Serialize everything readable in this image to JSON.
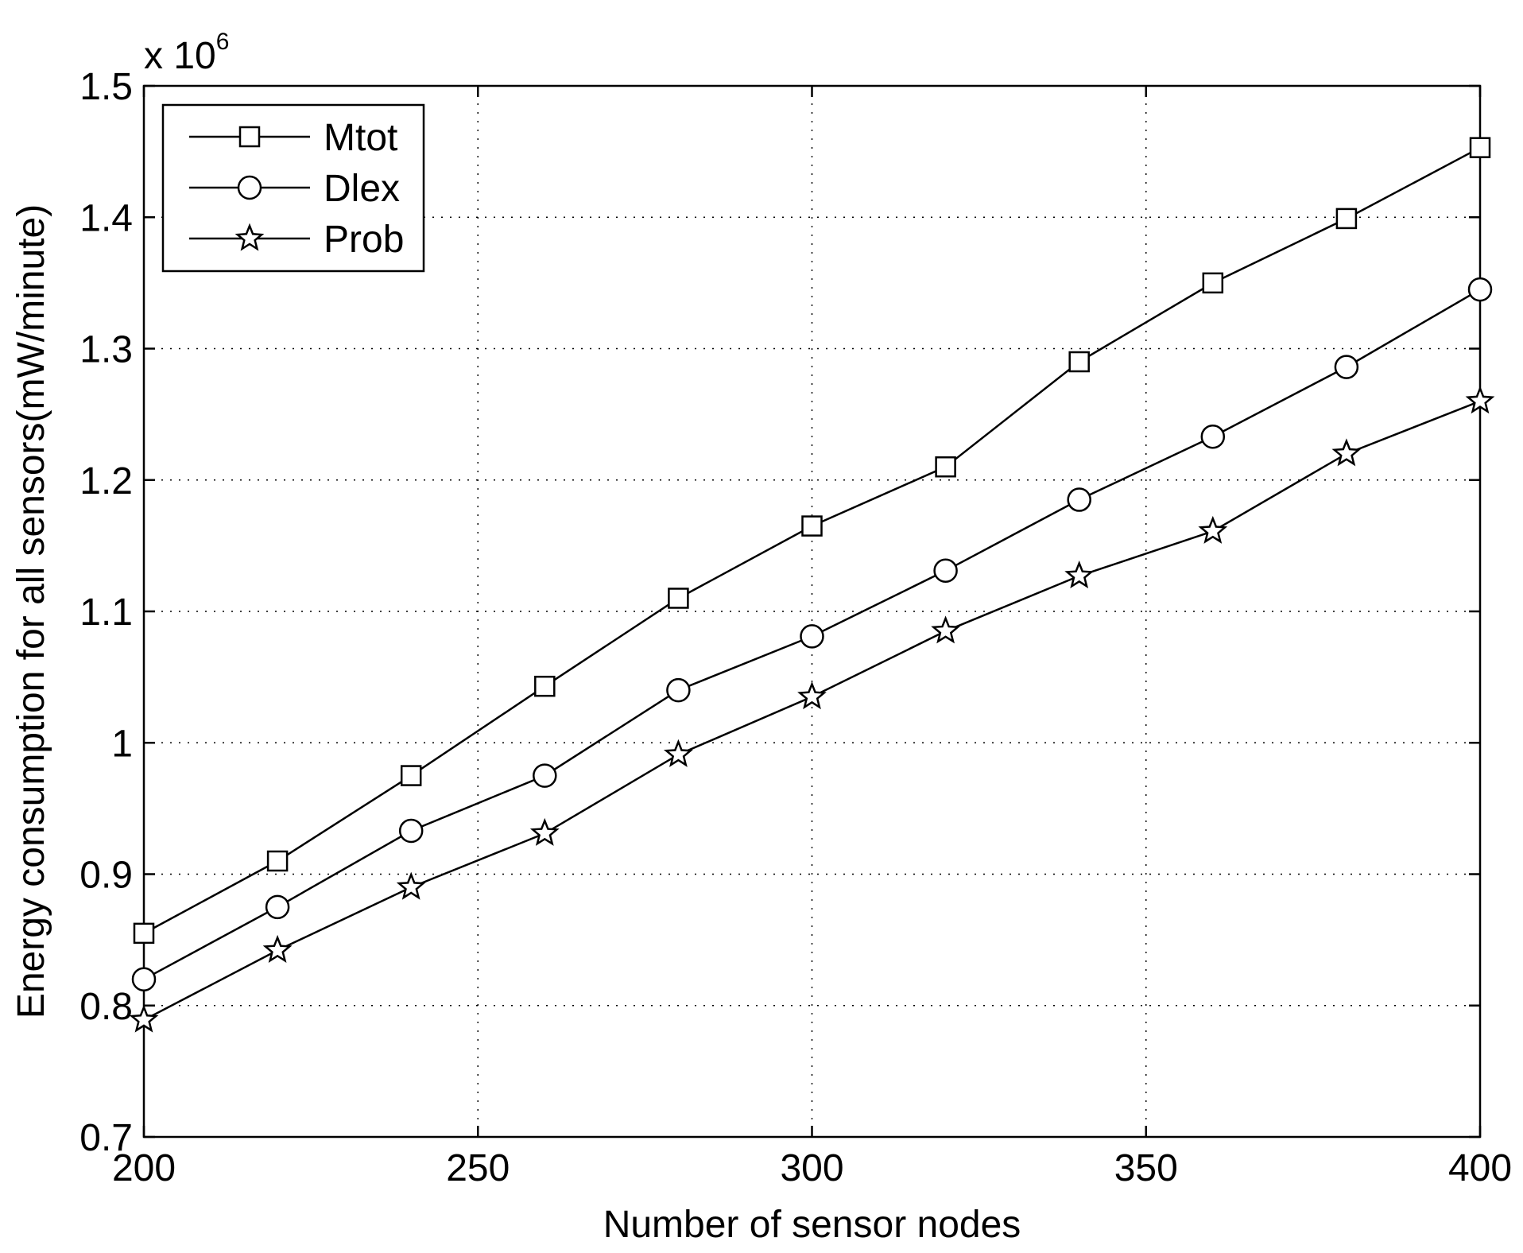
{
  "chart_data": {
    "type": "line",
    "title": "",
    "xlabel": "Number of sensor nodes",
    "ylabel": "Energy consumption for all sensors(mW/minute)",
    "y_multiplier_label": {
      "base": "x 10",
      "exponent": "6"
    },
    "xlim": [
      200,
      400
    ],
    "ylim": [
      0.7,
      1.5
    ],
    "x_ticks": [
      200,
      250,
      300,
      350,
      400
    ],
    "x_tick_labels": [
      "200",
      "250",
      "300",
      "350",
      "400"
    ],
    "y_ticks": [
      0.7,
      0.8,
      0.9,
      1.0,
      1.1,
      1.2,
      1.3,
      1.4,
      1.5
    ],
    "y_tick_labels": [
      "0.7",
      "0.8",
      "0.9",
      "1",
      "1.1",
      "1.2",
      "1.3",
      "1.4",
      "1.5"
    ],
    "grid": true,
    "legend_position": "top-left",
    "line_color": "#000000",
    "x": [
      200,
      220,
      240,
      260,
      280,
      300,
      320,
      340,
      360,
      380,
      400
    ],
    "series": [
      {
        "name": "Mtot",
        "marker": "square",
        "values": [
          0.855,
          0.91,
          0.975,
          1.043,
          1.11,
          1.165,
          1.21,
          1.29,
          1.35,
          1.399,
          1.453
        ]
      },
      {
        "name": "Dlex",
        "marker": "circle",
        "values": [
          0.82,
          0.875,
          0.933,
          0.975,
          1.04,
          1.081,
          1.131,
          1.185,
          1.233,
          1.286,
          1.345
        ]
      },
      {
        "name": "Prob",
        "marker": "star",
        "values": [
          0.789,
          0.842,
          0.89,
          0.931,
          0.991,
          1.035,
          1.085,
          1.127,
          1.161,
          1.22,
          1.26
        ]
      }
    ]
  }
}
